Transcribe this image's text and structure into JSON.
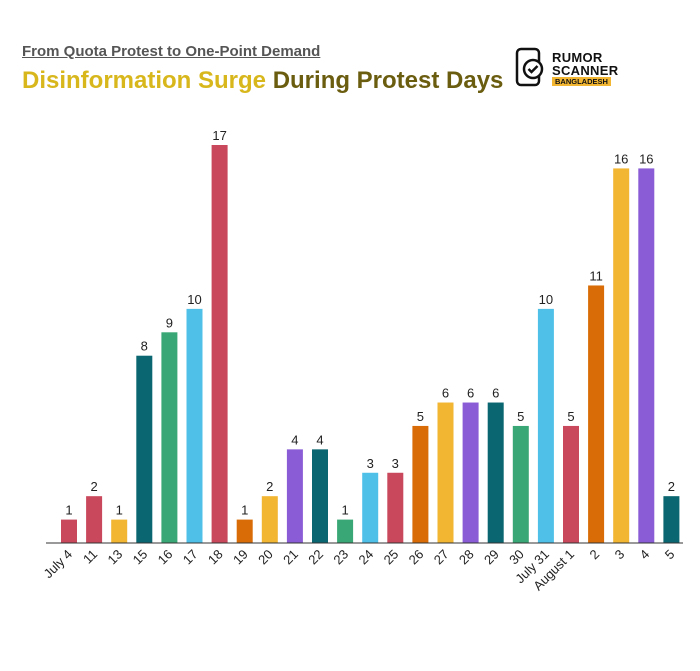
{
  "header": {
    "subtitle": "From Quota Protest to One-Point Demand",
    "title_part1": "Disinformation Surge ",
    "title_part2": "During Protest Days",
    "title_color1": "#d8b71c",
    "title_color2": "#6b5d10"
  },
  "logo": {
    "line1": "RUMOR",
    "line2": "SCANNER",
    "line3": "BANGLADESH",
    "icon": "phone-checkmark-icon"
  },
  "chart_data": {
    "type": "bar",
    "title": "Disinformation Surge During Protest Days",
    "subtitle": "From Quota Protest to One-Point Demand",
    "xlabel": "",
    "ylabel": "",
    "ylim": [
      0,
      17
    ],
    "grid": false,
    "categories": [
      "July 4",
      "11",
      "13",
      "15",
      "16",
      "17",
      "18",
      "19",
      "20",
      "21",
      "22",
      "23",
      "24",
      "25",
      "26",
      "27",
      "28",
      "29",
      "30",
      "July 31",
      "August 1",
      "2",
      "3",
      "4",
      "5"
    ],
    "values": [
      1,
      2,
      1,
      8,
      9,
      10,
      17,
      1,
      2,
      4,
      4,
      1,
      3,
      3,
      5,
      6,
      6,
      6,
      5,
      10,
      5,
      11,
      16,
      16,
      2
    ],
    "colors": [
      "#c9485b",
      "#c9485b",
      "#f2b632",
      "#0a6670",
      "#3aa876",
      "#4fc1e9",
      "#c9485b",
      "#d96c06",
      "#f2b632",
      "#8a5cd6",
      "#0a6670",
      "#3aa876",
      "#4fc1e9",
      "#c9485b",
      "#d96c06",
      "#f2b632",
      "#8a5cd6",
      "#0a6670",
      "#3aa876",
      "#4fc1e9",
      "#c9485b",
      "#d96c06",
      "#f2b632",
      "#8a5cd6",
      "#0a6670"
    ]
  }
}
